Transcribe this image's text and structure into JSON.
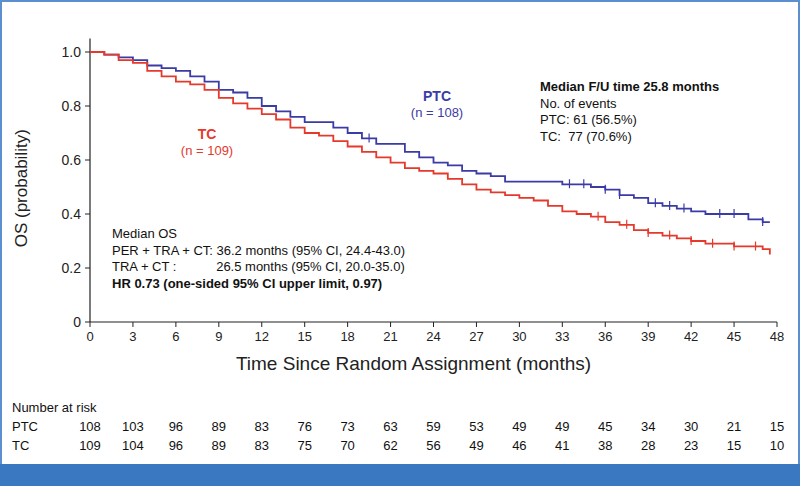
{
  "chart_data": {
    "type": "line",
    "line_style": "step",
    "x_label": "Time Since Random Assignment (months)",
    "y_label": "OS (probability)",
    "xlim": [
      0,
      48
    ],
    "ylim": [
      0,
      1.05
    ],
    "xticks": [
      0,
      3,
      6,
      9,
      12,
      15,
      18,
      21,
      24,
      27,
      30,
      33,
      36,
      39,
      42,
      45,
      48
    ],
    "yticks": [
      0,
      0.2,
      0.4,
      0.6,
      0.8,
      {
        "value": 1,
        "label": "1.0"
      }
    ],
    "x": [
      0,
      1,
      2,
      3,
      4,
      5,
      6,
      7,
      8,
      9,
      10,
      11,
      12,
      13,
      14,
      15,
      16,
      17,
      18,
      19,
      20,
      21,
      22,
      23,
      24,
      25,
      26,
      27,
      28,
      29,
      30,
      31,
      32,
      33,
      34,
      35,
      36,
      37,
      38,
      39,
      40,
      41,
      42,
      43,
      44,
      45,
      46,
      47,
      47.5
    ],
    "series": [
      {
        "name": "PTC",
        "n_label": "(n = 108)",
        "color": "#3b3ba6",
        "values": [
          1.0,
          0.99,
          0.98,
          0.97,
          0.95,
          0.94,
          0.93,
          0.91,
          0.89,
          0.86,
          0.85,
          0.83,
          0.8,
          0.78,
          0.76,
          0.74,
          0.74,
          0.72,
          0.7,
          0.68,
          0.66,
          0.66,
          0.63,
          0.61,
          0.59,
          0.58,
          0.56,
          0.55,
          0.54,
          0.52,
          0.52,
          0.52,
          0.52,
          0.51,
          0.51,
          0.5,
          0.49,
          0.47,
          0.46,
          0.44,
          0.43,
          0.42,
          0.41,
          0.4,
          0.4,
          0.4,
          0.38,
          0.37,
          0.37
        ],
        "censored": [
          19.5,
          33.5,
          34.5,
          36,
          37,
          39.5,
          40.5,
          41.5,
          44,
          45,
          47
        ],
        "at_risk": [
          108,
          103,
          96,
          89,
          83,
          76,
          73,
          63,
          59,
          53,
          49,
          49,
          45,
          34,
          30,
          21,
          15
        ]
      },
      {
        "name": "TC",
        "n_label": "(n = 109)",
        "color": "#e5392c",
        "values": [
          1.0,
          0.99,
          0.97,
          0.96,
          0.93,
          0.91,
          0.89,
          0.88,
          0.86,
          0.83,
          0.81,
          0.79,
          0.77,
          0.75,
          0.72,
          0.7,
          0.69,
          0.67,
          0.65,
          0.63,
          0.61,
          0.59,
          0.57,
          0.56,
          0.55,
          0.53,
          0.51,
          0.49,
          0.48,
          0.47,
          0.46,
          0.45,
          0.43,
          0.41,
          0.4,
          0.39,
          0.37,
          0.36,
          0.34,
          0.33,
          0.32,
          0.31,
          0.3,
          0.29,
          0.29,
          0.28,
          0.28,
          0.27,
          0.25
        ],
        "censored": [
          35.5,
          37.5,
          39,
          40.5,
          42,
          43.5,
          45,
          46.5
        ],
        "at_risk": [
          109,
          104,
          96,
          89,
          83,
          75,
          70,
          62,
          56,
          49,
          46,
          41,
          38,
          28,
          23,
          15,
          10
        ]
      }
    ],
    "annotations": [
      [
        "Median F/U time 25.8 months",
        "No. of events",
        "PTC: 61 (56.5%)",
        "TC:  77 (70.6%)"
      ],
      [
        "Median OS",
        "PER + TRA + CT: 36.2 months (95% CI, 24.4-43.0)",
        "TRA + CT :           26.5 months (95% CI, 20.0-35.0)",
        "HR 0.73 (one-sided 95% CI upper limit, 0.97)"
      ]
    ],
    "at_risk_title": "Number at risk"
  }
}
